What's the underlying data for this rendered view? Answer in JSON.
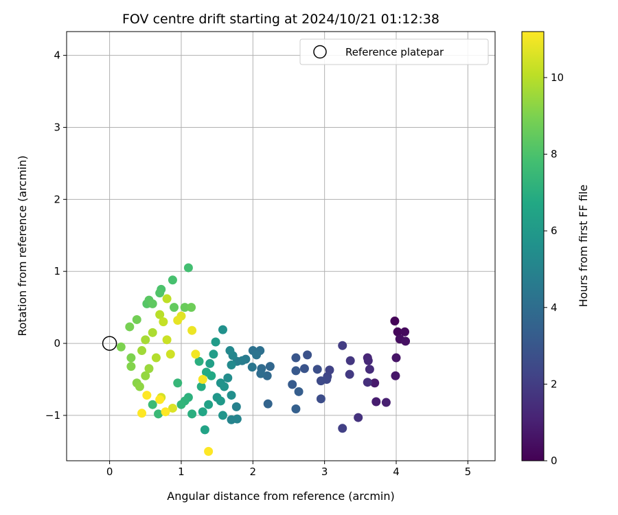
{
  "chart_data": {
    "type": "scatter",
    "title": "FOV centre drift starting at 2024/10/21 01:12:38",
    "xlabel": "Angular distance from reference (arcmin)",
    "ylabel": "Rotation from reference (arcmin)",
    "xlim": [
      -0.6,
      5.38
    ],
    "ylim": [
      -1.63,
      4.33
    ],
    "xticks": [
      0,
      1,
      2,
      3,
      4,
      5
    ],
    "yticks": [
      -1,
      0,
      1,
      2,
      3,
      4
    ],
    "grid": true,
    "colormap": "viridis",
    "colorbar": {
      "label": "Hours from first FF file",
      "range": [
        0,
        11.2
      ],
      "ticks": [
        0,
        2,
        4,
        6,
        8,
        10
      ]
    },
    "reference": {
      "label": "Reference platepar",
      "x": 0,
      "y": 0
    },
    "legend_position": "top-right",
    "points": [
      {
        "x": 3.98,
        "y": 0.31,
        "h": 0.1
      },
      {
        "x": 4.02,
        "y": 0.16,
        "h": 0.2
      },
      {
        "x": 4.12,
        "y": 0.16,
        "h": 0.3
      },
      {
        "x": 4.05,
        "y": 0.06,
        "h": 0.4
      },
      {
        "x": 4.13,
        "y": 0.03,
        "h": 0.5
      },
      {
        "x": 4.0,
        "y": -0.2,
        "h": 0.6
      },
      {
        "x": 3.99,
        "y": -0.45,
        "h": 0.7
      },
      {
        "x": 3.7,
        "y": -0.55,
        "h": 0.8
      },
      {
        "x": 3.72,
        "y": -0.81,
        "h": 0.9
      },
      {
        "x": 3.86,
        "y": -0.82,
        "h": 1.0
      },
      {
        "x": 3.6,
        "y": -0.2,
        "h": 1.2
      },
      {
        "x": 3.61,
        "y": -0.24,
        "h": 1.3
      },
      {
        "x": 3.63,
        "y": -0.36,
        "h": 1.4
      },
      {
        "x": 3.6,
        "y": -0.54,
        "h": 1.5
      },
      {
        "x": 3.47,
        "y": -1.03,
        "h": 1.6
      },
      {
        "x": 3.36,
        "y": -0.24,
        "h": 1.8
      },
      {
        "x": 3.35,
        "y": -0.43,
        "h": 1.9
      },
      {
        "x": 3.25,
        "y": -0.03,
        "h": 2.0
      },
      {
        "x": 3.25,
        "y": -1.18,
        "h": 2.1
      },
      {
        "x": 3.07,
        "y": -0.37,
        "h": 2.2
      },
      {
        "x": 3.04,
        "y": -0.46,
        "h": 2.3
      },
      {
        "x": 3.03,
        "y": -0.5,
        "h": 2.4
      },
      {
        "x": 2.95,
        "y": -0.52,
        "h": 2.5
      },
      {
        "x": 2.95,
        "y": -0.77,
        "h": 2.6
      },
      {
        "x": 2.9,
        "y": -0.36,
        "h": 2.7
      },
      {
        "x": 2.76,
        "y": -0.16,
        "h": 2.8
      },
      {
        "x": 2.72,
        "y": -0.35,
        "h": 2.9
      },
      {
        "x": 2.6,
        "y": -0.2,
        "h": 3.0
      },
      {
        "x": 2.6,
        "y": -0.38,
        "h": 3.1
      },
      {
        "x": 2.55,
        "y": -0.57,
        "h": 3.2
      },
      {
        "x": 2.64,
        "y": -0.67,
        "h": 3.3
      },
      {
        "x": 2.6,
        "y": -0.91,
        "h": 3.4
      },
      {
        "x": 2.21,
        "y": -0.84,
        "h": 3.6
      },
      {
        "x": 2.24,
        "y": -0.32,
        "h": 3.7
      },
      {
        "x": 2.2,
        "y": -0.45,
        "h": 3.8
      },
      {
        "x": 2.12,
        "y": -0.35,
        "h": 3.9
      },
      {
        "x": 2.11,
        "y": -0.42,
        "h": 4.0
      },
      {
        "x": 2.1,
        "y": -0.1,
        "h": 4.1
      },
      {
        "x": 2.0,
        "y": -0.1,
        "h": 4.2
      },
      {
        "x": 2.05,
        "y": -0.16,
        "h": 4.3
      },
      {
        "x": 1.99,
        "y": -0.33,
        "h": 4.4
      },
      {
        "x": 1.9,
        "y": -0.22,
        "h": 4.6
      },
      {
        "x": 1.85,
        "y": -0.24,
        "h": 4.7
      },
      {
        "x": 1.78,
        "y": -0.25,
        "h": 4.8
      },
      {
        "x": 1.77,
        "y": -0.88,
        "h": 4.9
      },
      {
        "x": 1.78,
        "y": -1.05,
        "h": 5.0
      },
      {
        "x": 1.7,
        "y": -1.06,
        "h": 5.0
      },
      {
        "x": 1.72,
        "y": -0.17,
        "h": 5.1
      },
      {
        "x": 1.68,
        "y": -0.1,
        "h": 5.2
      },
      {
        "x": 1.7,
        "y": -0.3,
        "h": 5.3
      },
      {
        "x": 1.65,
        "y": -0.48,
        "h": 5.4
      },
      {
        "x": 1.7,
        "y": -0.72,
        "h": 5.5
      },
      {
        "x": 1.58,
        "y": 0.19,
        "h": 5.6
      },
      {
        "x": 1.55,
        "y": -0.55,
        "h": 5.7
      },
      {
        "x": 1.6,
        "y": -0.6,
        "h": 5.7
      },
      {
        "x": 1.58,
        "y": -1.0,
        "h": 5.8
      },
      {
        "x": 1.5,
        "y": -0.75,
        "h": 5.9
      },
      {
        "x": 1.55,
        "y": -0.8,
        "h": 6.0
      },
      {
        "x": 1.48,
        "y": 0.02,
        "h": 6.1
      },
      {
        "x": 1.45,
        "y": -0.15,
        "h": 6.2
      },
      {
        "x": 1.4,
        "y": -0.28,
        "h": 6.3
      },
      {
        "x": 1.38,
        "y": -0.85,
        "h": 6.4
      },
      {
        "x": 1.33,
        "y": -1.2,
        "h": 6.5
      },
      {
        "x": 1.3,
        "y": -0.95,
        "h": 6.6
      },
      {
        "x": 1.42,
        "y": -0.45,
        "h": 6.7
      },
      {
        "x": 1.35,
        "y": -0.4,
        "h": 6.8
      },
      {
        "x": 1.28,
        "y": -0.6,
        "h": 6.9
      },
      {
        "x": 1.25,
        "y": -0.25,
        "h": 7.0
      },
      {
        "x": 1.15,
        "y": -0.98,
        "h": 7.0
      },
      {
        "x": 1.1,
        "y": -0.75,
        "h": 7.1
      },
      {
        "x": 1.05,
        "y": -0.8,
        "h": 7.2
      },
      {
        "x": 1.0,
        "y": -0.85,
        "h": 7.3
      },
      {
        "x": 0.95,
        "y": -0.55,
        "h": 7.4
      },
      {
        "x": 0.68,
        "y": -0.98,
        "h": 7.5
      },
      {
        "x": 0.6,
        "y": -0.85,
        "h": 7.6
      },
      {
        "x": 1.1,
        "y": 1.05,
        "h": 7.8
      },
      {
        "x": 0.88,
        "y": 0.88,
        "h": 7.9
      },
      {
        "x": 0.72,
        "y": 0.75,
        "h": 8.0
      },
      {
        "x": 0.7,
        "y": 0.7,
        "h": 8.1
      },
      {
        "x": 0.52,
        "y": 0.55,
        "h": 8.2
      },
      {
        "x": 0.55,
        "y": 0.6,
        "h": 8.3
      },
      {
        "x": 0.6,
        "y": 0.55,
        "h": 8.4
      },
      {
        "x": 0.9,
        "y": 0.5,
        "h": 8.5
      },
      {
        "x": 1.05,
        "y": 0.5,
        "h": 8.6
      },
      {
        "x": 1.14,
        "y": 0.5,
        "h": 8.7
      },
      {
        "x": 0.38,
        "y": 0.33,
        "h": 8.8
      },
      {
        "x": 0.28,
        "y": 0.23,
        "h": 8.9
      },
      {
        "x": 0.16,
        "y": -0.05,
        "h": 9.0
      },
      {
        "x": 0.3,
        "y": -0.2,
        "h": 9.0
      },
      {
        "x": 0.3,
        "y": -0.32,
        "h": 9.1
      },
      {
        "x": 0.38,
        "y": -0.55,
        "h": 9.2
      },
      {
        "x": 0.42,
        "y": -0.6,
        "h": 9.3
      },
      {
        "x": 0.5,
        "y": -0.45,
        "h": 9.4
      },
      {
        "x": 0.55,
        "y": -0.35,
        "h": 9.5
      },
      {
        "x": 0.45,
        "y": -0.1,
        "h": 9.6
      },
      {
        "x": 0.5,
        "y": 0.05,
        "h": 9.7
      },
      {
        "x": 0.6,
        "y": 0.15,
        "h": 9.8
      },
      {
        "x": 0.65,
        "y": -0.2,
        "h": 9.9
      },
      {
        "x": 0.7,
        "y": 0.4,
        "h": 10.0
      },
      {
        "x": 0.8,
        "y": 0.62,
        "h": 10.1
      },
      {
        "x": 0.75,
        "y": 0.3,
        "h": 10.2
      },
      {
        "x": 0.8,
        "y": 0.05,
        "h": 10.3
      },
      {
        "x": 0.85,
        "y": -0.15,
        "h": 10.4
      },
      {
        "x": 0.72,
        "y": -0.75,
        "h": 10.5
      },
      {
        "x": 0.88,
        "y": -0.9,
        "h": 10.6
      },
      {
        "x": 1.0,
        "y": 0.38,
        "h": 10.7
      },
      {
        "x": 0.95,
        "y": 0.32,
        "h": 10.8
      },
      {
        "x": 1.15,
        "y": 0.18,
        "h": 10.9
      },
      {
        "x": 1.2,
        "y": -0.15,
        "h": 11.0
      },
      {
        "x": 1.3,
        "y": -0.5,
        "h": 11.1
      },
      {
        "x": 1.38,
        "y": -1.5,
        "h": 11.2
      },
      {
        "x": 0.45,
        "y": -0.97,
        "h": 11.2
      },
      {
        "x": 0.52,
        "y": -0.72,
        "h": 11.2
      },
      {
        "x": 0.78,
        "y": -0.95,
        "h": 11.2
      },
      {
        "x": 0.7,
        "y": -0.78,
        "h": 11.2
      }
    ]
  }
}
